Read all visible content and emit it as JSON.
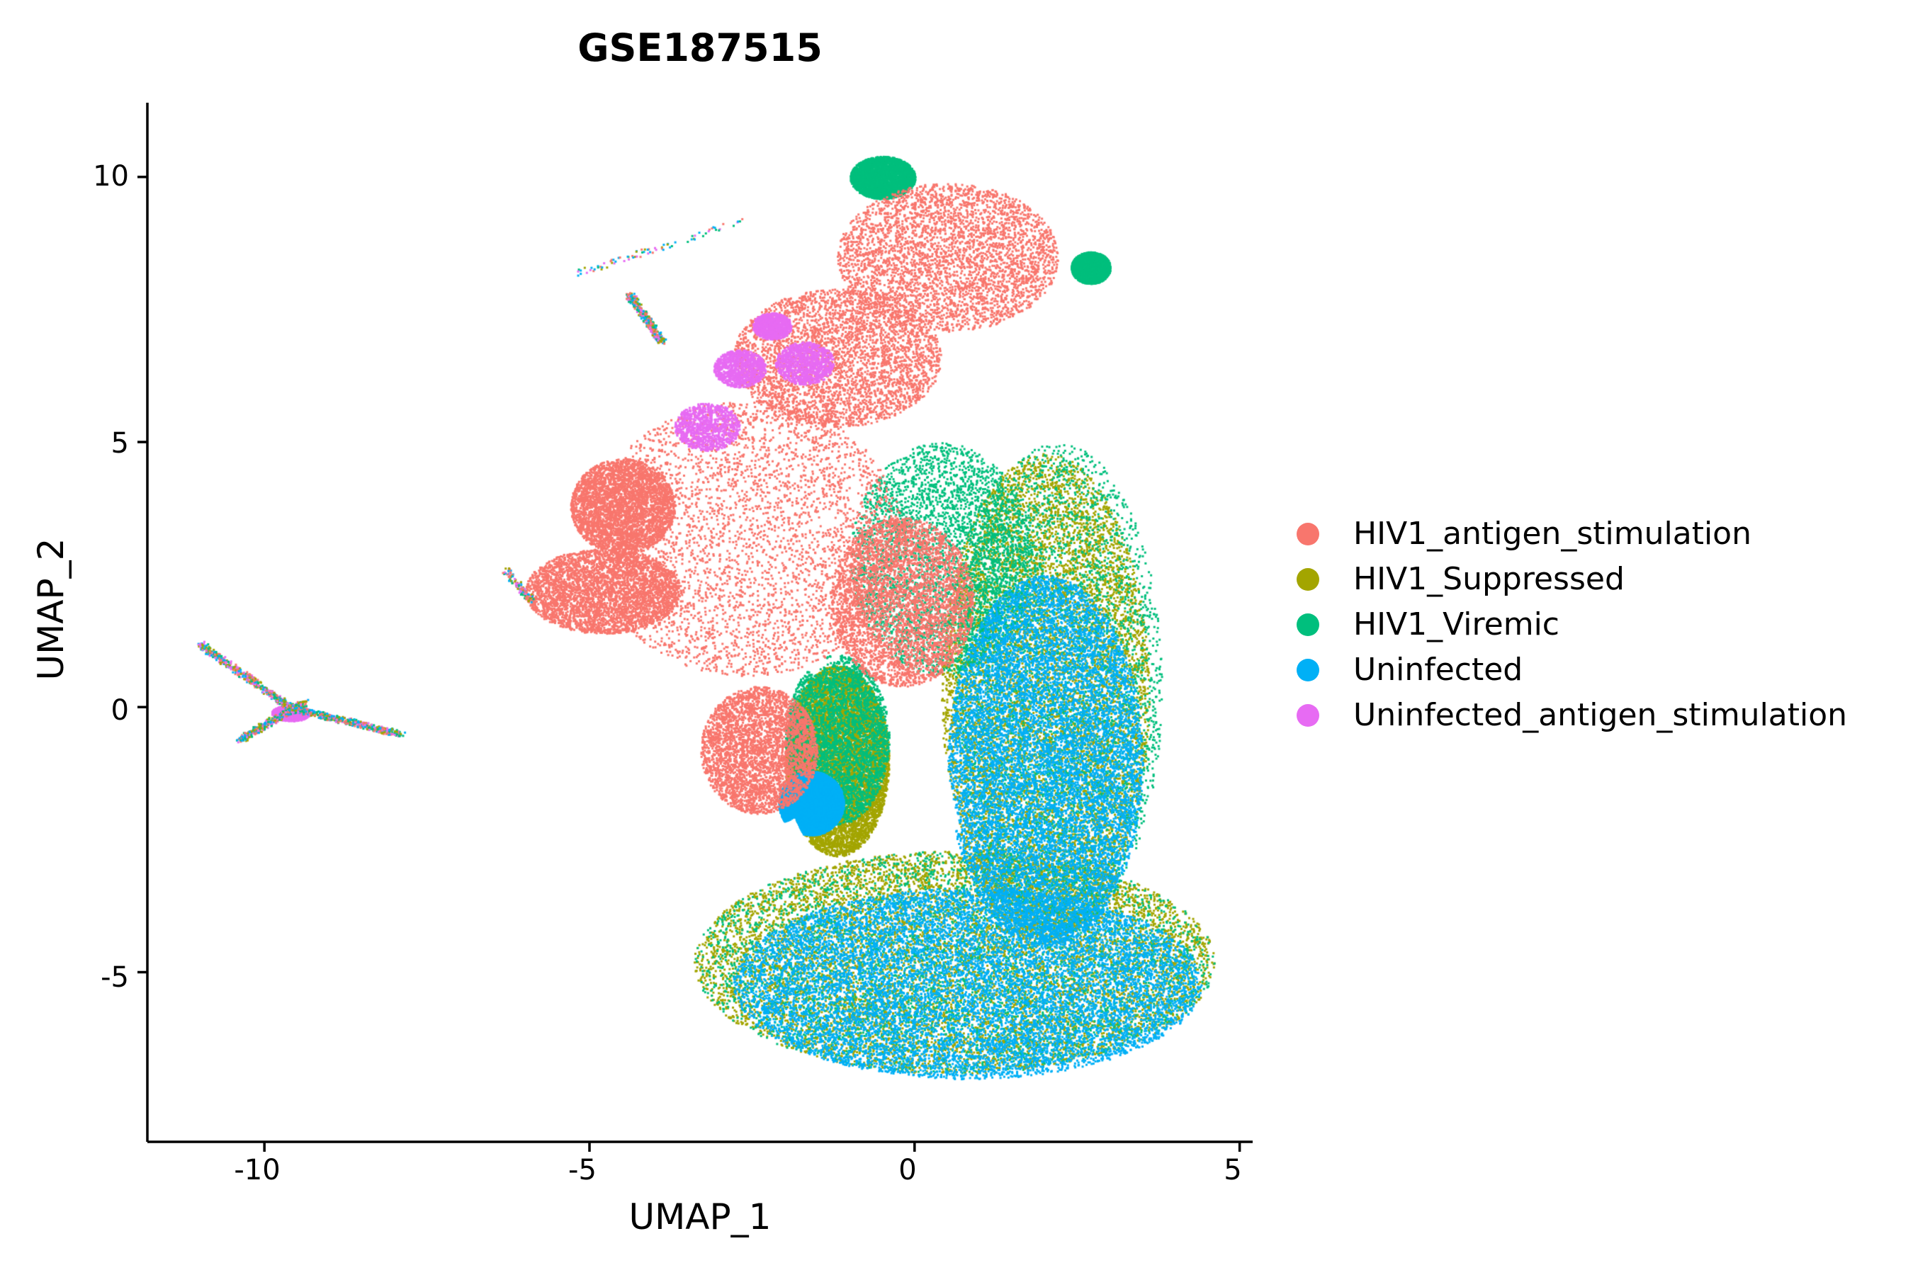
{
  "chart_data": {
    "type": "scatter",
    "title": "GSE187515",
    "xlabel": "UMAP_1",
    "ylabel": "UMAP_2",
    "xlim": [
      -11.8,
      5.2
    ],
    "ylim": [
      -8.2,
      11.4
    ],
    "xticks": [
      -10,
      -5,
      0,
      5
    ],
    "yticks": [
      -5,
      0,
      5,
      10
    ],
    "xtick_labels": [
      "-10",
      "-5",
      "0",
      "5"
    ],
    "ytick_labels": [
      "-5",
      "0",
      "5",
      "10"
    ],
    "grid": false,
    "legend_position": "right",
    "point_shape": "dot",
    "series": [
      {
        "name": "HIV1_antigen_stimulation",
        "color": "#F8766D",
        "approx_regions": [
          {
            "cx": -2.6,
            "cy": 3.2,
            "rx": 2.4,
            "ry": 2.6
          },
          {
            "cx": -4.8,
            "cy": 2.2,
            "rx": 1.2,
            "ry": 0.8
          },
          {
            "cx": -4.5,
            "cy": 3.8,
            "rx": 0.8,
            "ry": 0.9
          },
          {
            "cx": 0.5,
            "cy": 8.5,
            "rx": 1.7,
            "ry": 1.4
          },
          {
            "cx": -1.2,
            "cy": 6.6,
            "rx": 1.6,
            "ry": 1.3
          },
          {
            "cx": -0.2,
            "cy": 2.0,
            "rx": 1.1,
            "ry": 1.6
          },
          {
            "cx": -2.4,
            "cy": -0.8,
            "rx": 0.9,
            "ry": 1.2
          }
        ]
      },
      {
        "name": "HIV1_Suppressed",
        "color": "#A3A500",
        "approx_regions": [
          {
            "cx": 0.6,
            "cy": -4.8,
            "rx": 4.0,
            "ry": 2.1
          },
          {
            "cx": 2.0,
            "cy": 0.2,
            "rx": 1.6,
            "ry": 4.6
          },
          {
            "cx": -1.2,
            "cy": -1.0,
            "rx": 0.8,
            "ry": 1.8
          }
        ]
      },
      {
        "name": "HIV1_Viremic",
        "color": "#00BF7D",
        "approx_regions": [
          {
            "cx": 0.6,
            "cy": -4.8,
            "rx": 4.0,
            "ry": 2.1
          },
          {
            "cx": 2.2,
            "cy": 0.4,
            "rx": 1.6,
            "ry": 4.6
          },
          {
            "cx": 0.4,
            "cy": 2.8,
            "rx": 1.4,
            "ry": 2.2
          },
          {
            "cx": -0.5,
            "cy": 10.0,
            "rx": 0.5,
            "ry": 0.4
          },
          {
            "cx": 2.7,
            "cy": 8.3,
            "rx": 0.3,
            "ry": 0.3
          },
          {
            "cx": -1.2,
            "cy": -0.6,
            "rx": 0.8,
            "ry": 1.6
          }
        ]
      },
      {
        "name": "Uninfected",
        "color": "#00B0F6",
        "approx_regions": [
          {
            "cx": 0.8,
            "cy": -5.2,
            "rx": 3.6,
            "ry": 1.8
          },
          {
            "cx": 2.0,
            "cy": -1.0,
            "rx": 1.5,
            "ry": 3.5
          },
          {
            "cx": -1.6,
            "cy": -1.8,
            "rx": 0.5,
            "ry": 0.6
          }
        ]
      },
      {
        "name": "Uninfected_antigen_stimulation",
        "color": "#E76BF3",
        "approx_regions": [
          {
            "cx": -1.7,
            "cy": 6.5,
            "rx": 0.45,
            "ry": 0.4
          },
          {
            "cx": -2.7,
            "cy": 6.4,
            "rx": 0.4,
            "ry": 0.35
          },
          {
            "cx": -3.2,
            "cy": 5.3,
            "rx": 0.5,
            "ry": 0.45
          },
          {
            "cx": -2.2,
            "cy": 7.2,
            "rx": 0.3,
            "ry": 0.25
          },
          {
            "cx": -9.6,
            "cy": -0.1,
            "rx": 0.3,
            "ry": 0.15
          }
        ]
      }
    ]
  },
  "legend": {
    "items": [
      {
        "label": "HIV1_antigen_stimulation",
        "color": "#F8766D"
      },
      {
        "label": "HIV1_Suppressed",
        "color": "#A3A500"
      },
      {
        "label": "HIV1_Viremic",
        "color": "#00BF7D"
      },
      {
        "label": "Uninfected",
        "color": "#00B0F6"
      },
      {
        "label": "Uninfected_antigen_stimulation",
        "color": "#E76BF3"
      }
    ]
  }
}
